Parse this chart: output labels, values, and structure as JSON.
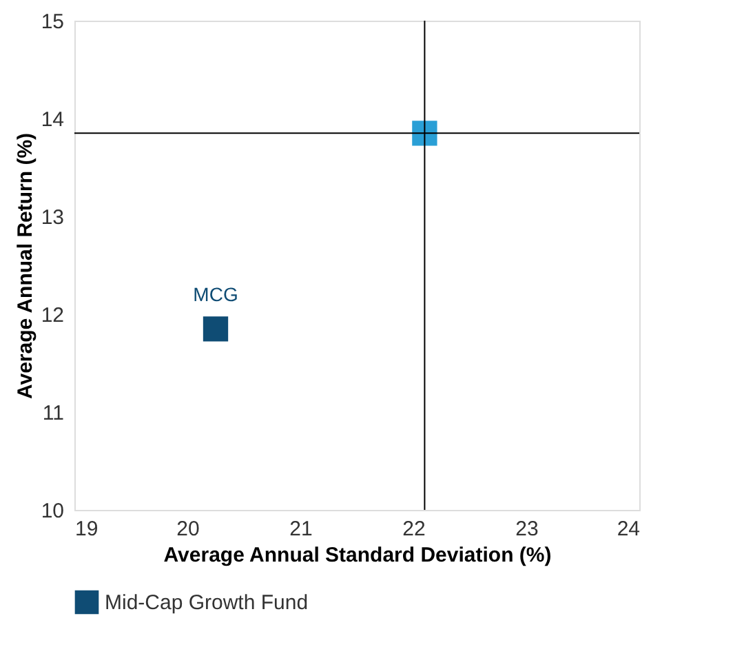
{
  "chart_data": {
    "type": "scatter",
    "xlabel": "Average Annual Standard Deviation (%)",
    "ylabel": "Average Annual Return (%)",
    "series": [
      {
        "name": "Mid-Cap Growth Fund",
        "color": "#0f4c74",
        "x": [
          20.25
        ],
        "values": [
          11.85
        ]
      },
      {
        "color": "#2a9fd6",
        "x": [
          22.1
        ],
        "values": [
          13.85
        ]
      }
    ],
    "annotations": [
      {
        "text": "MCG",
        "x": 20.25,
        "y": 11.85
      }
    ],
    "ref_lines": [
      {
        "axis": "x",
        "value": 22.1,
        "color": "#000000"
      },
      {
        "axis": "y",
        "value": 13.85,
        "color": "#000000"
      }
    ],
    "xlim": [
      19,
      24
    ],
    "xticks": [
      19,
      20,
      21,
      22,
      23,
      24
    ],
    "ylim": [
      10,
      15
    ],
    "yticks": [
      10,
      11,
      12,
      13,
      14,
      15
    ],
    "grid": false,
    "legend": "bottom",
    "marker": "square"
  }
}
